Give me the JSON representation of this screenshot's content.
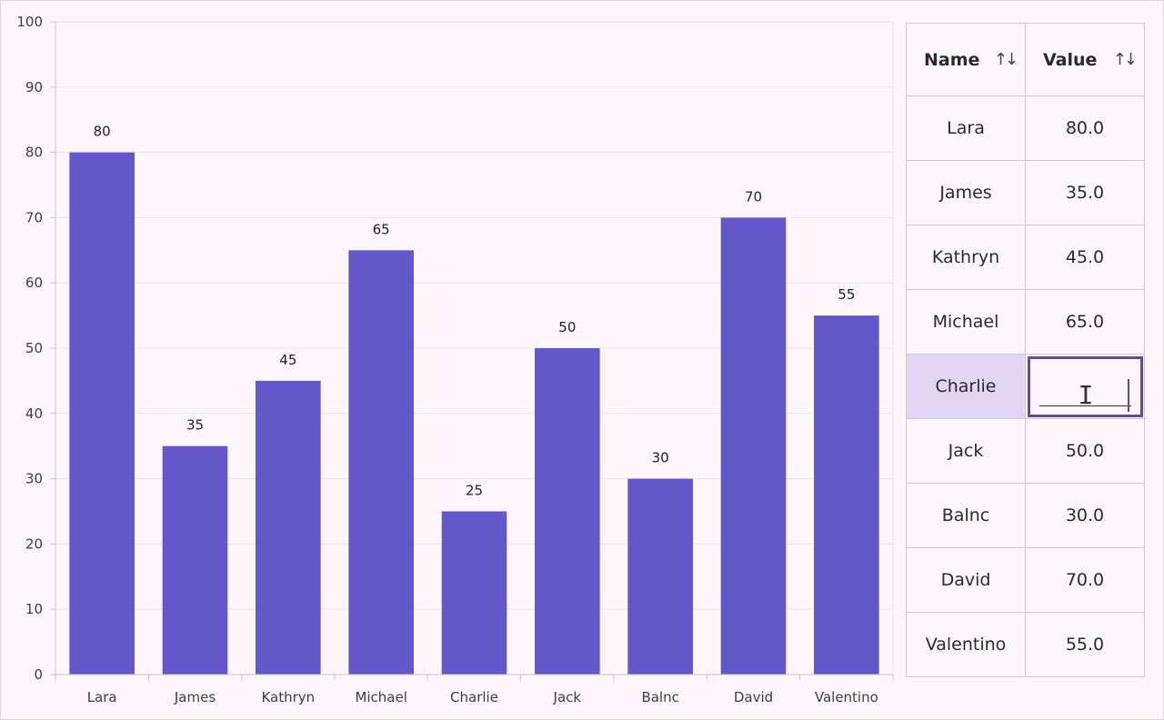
{
  "chart_data": {
    "type": "bar",
    "categories": [
      "Lara",
      "James",
      "Kathryn",
      "Michael",
      "Charlie",
      "Jack",
      "Balnc",
      "David",
      "Valentino"
    ],
    "values": [
      80,
      35,
      45,
      65,
      25,
      50,
      30,
      70,
      55
    ],
    "data_labels": [
      "80",
      "35",
      "45",
      "65",
      "25",
      "50",
      "30",
      "70",
      "55"
    ],
    "ylim": [
      0,
      100
    ],
    "yticks": [
      "0",
      "10",
      "20",
      "30",
      "40",
      "50",
      "60",
      "70",
      "80",
      "90",
      "100"
    ],
    "grid": true,
    "bar_color": "#6357c9"
  },
  "table": {
    "headers": [
      {
        "label": "Name"
      },
      {
        "label": "Value"
      }
    ],
    "sort_icon": "sort-arrows-icon",
    "rows": [
      {
        "name": "Lara",
        "value": "80.0"
      },
      {
        "name": "James",
        "value": "35.0"
      },
      {
        "name": "Kathryn",
        "value": "45.0"
      },
      {
        "name": "Michael",
        "value": "65.0"
      },
      {
        "name": "Charlie",
        "value": ""
      },
      {
        "name": "Jack",
        "value": "50.0"
      },
      {
        "name": "Balnc",
        "value": "30.0"
      },
      {
        "name": "David",
        "value": "70.0"
      },
      {
        "name": "Valentino",
        "value": "55.0"
      }
    ],
    "editing_row_index": 4,
    "selected_row_color": "#e3d3f5",
    "edit_border_color": "#5e4e99"
  }
}
